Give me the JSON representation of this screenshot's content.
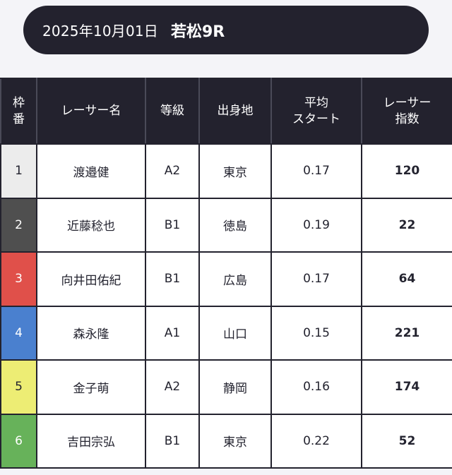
{
  "header": {
    "date": "2025年10月01日",
    "race": "若松9R"
  },
  "columns": {
    "frame": [
      "枠",
      "番"
    ],
    "name": "レーサー名",
    "class": "等級",
    "origin": "出身地",
    "avg_start": [
      "平均",
      "スタート"
    ],
    "index": [
      "レーサー",
      "指数"
    ]
  },
  "rows": [
    {
      "frame": "1",
      "name": "渡邉健",
      "class": "A2",
      "origin": "東京",
      "avg_start": "0.17",
      "index": "120",
      "frame_color": "#ececec",
      "frame_text_color": "#23232f"
    },
    {
      "frame": "2",
      "name": "近藤稔也",
      "class": "B1",
      "origin": "徳島",
      "avg_start": "0.19",
      "index": "22",
      "frame_color": "#4f4f4f",
      "frame_text_color": "#ffffff"
    },
    {
      "frame": "3",
      "name": "向井田佑紀",
      "class": "B1",
      "origin": "広島",
      "avg_start": "0.17",
      "index": "64",
      "frame_color": "#e0504a",
      "frame_text_color": "#ffffff"
    },
    {
      "frame": "4",
      "name": "森永隆",
      "class": "A1",
      "origin": "山口",
      "avg_start": "0.15",
      "index": "221",
      "frame_color": "#4a80cf",
      "frame_text_color": "#ffffff"
    },
    {
      "frame": "5",
      "name": "金子萌",
      "class": "A2",
      "origin": "静岡",
      "avg_start": "0.16",
      "index": "174",
      "frame_color": "#eded74",
      "frame_text_color": "#23232f"
    },
    {
      "frame": "6",
      "name": "吉田宗弘",
      "class": "B1",
      "origin": "東京",
      "avg_start": "0.22",
      "index": "52",
      "frame_color": "#67b25a",
      "frame_text_color": "#ffffff"
    }
  ]
}
